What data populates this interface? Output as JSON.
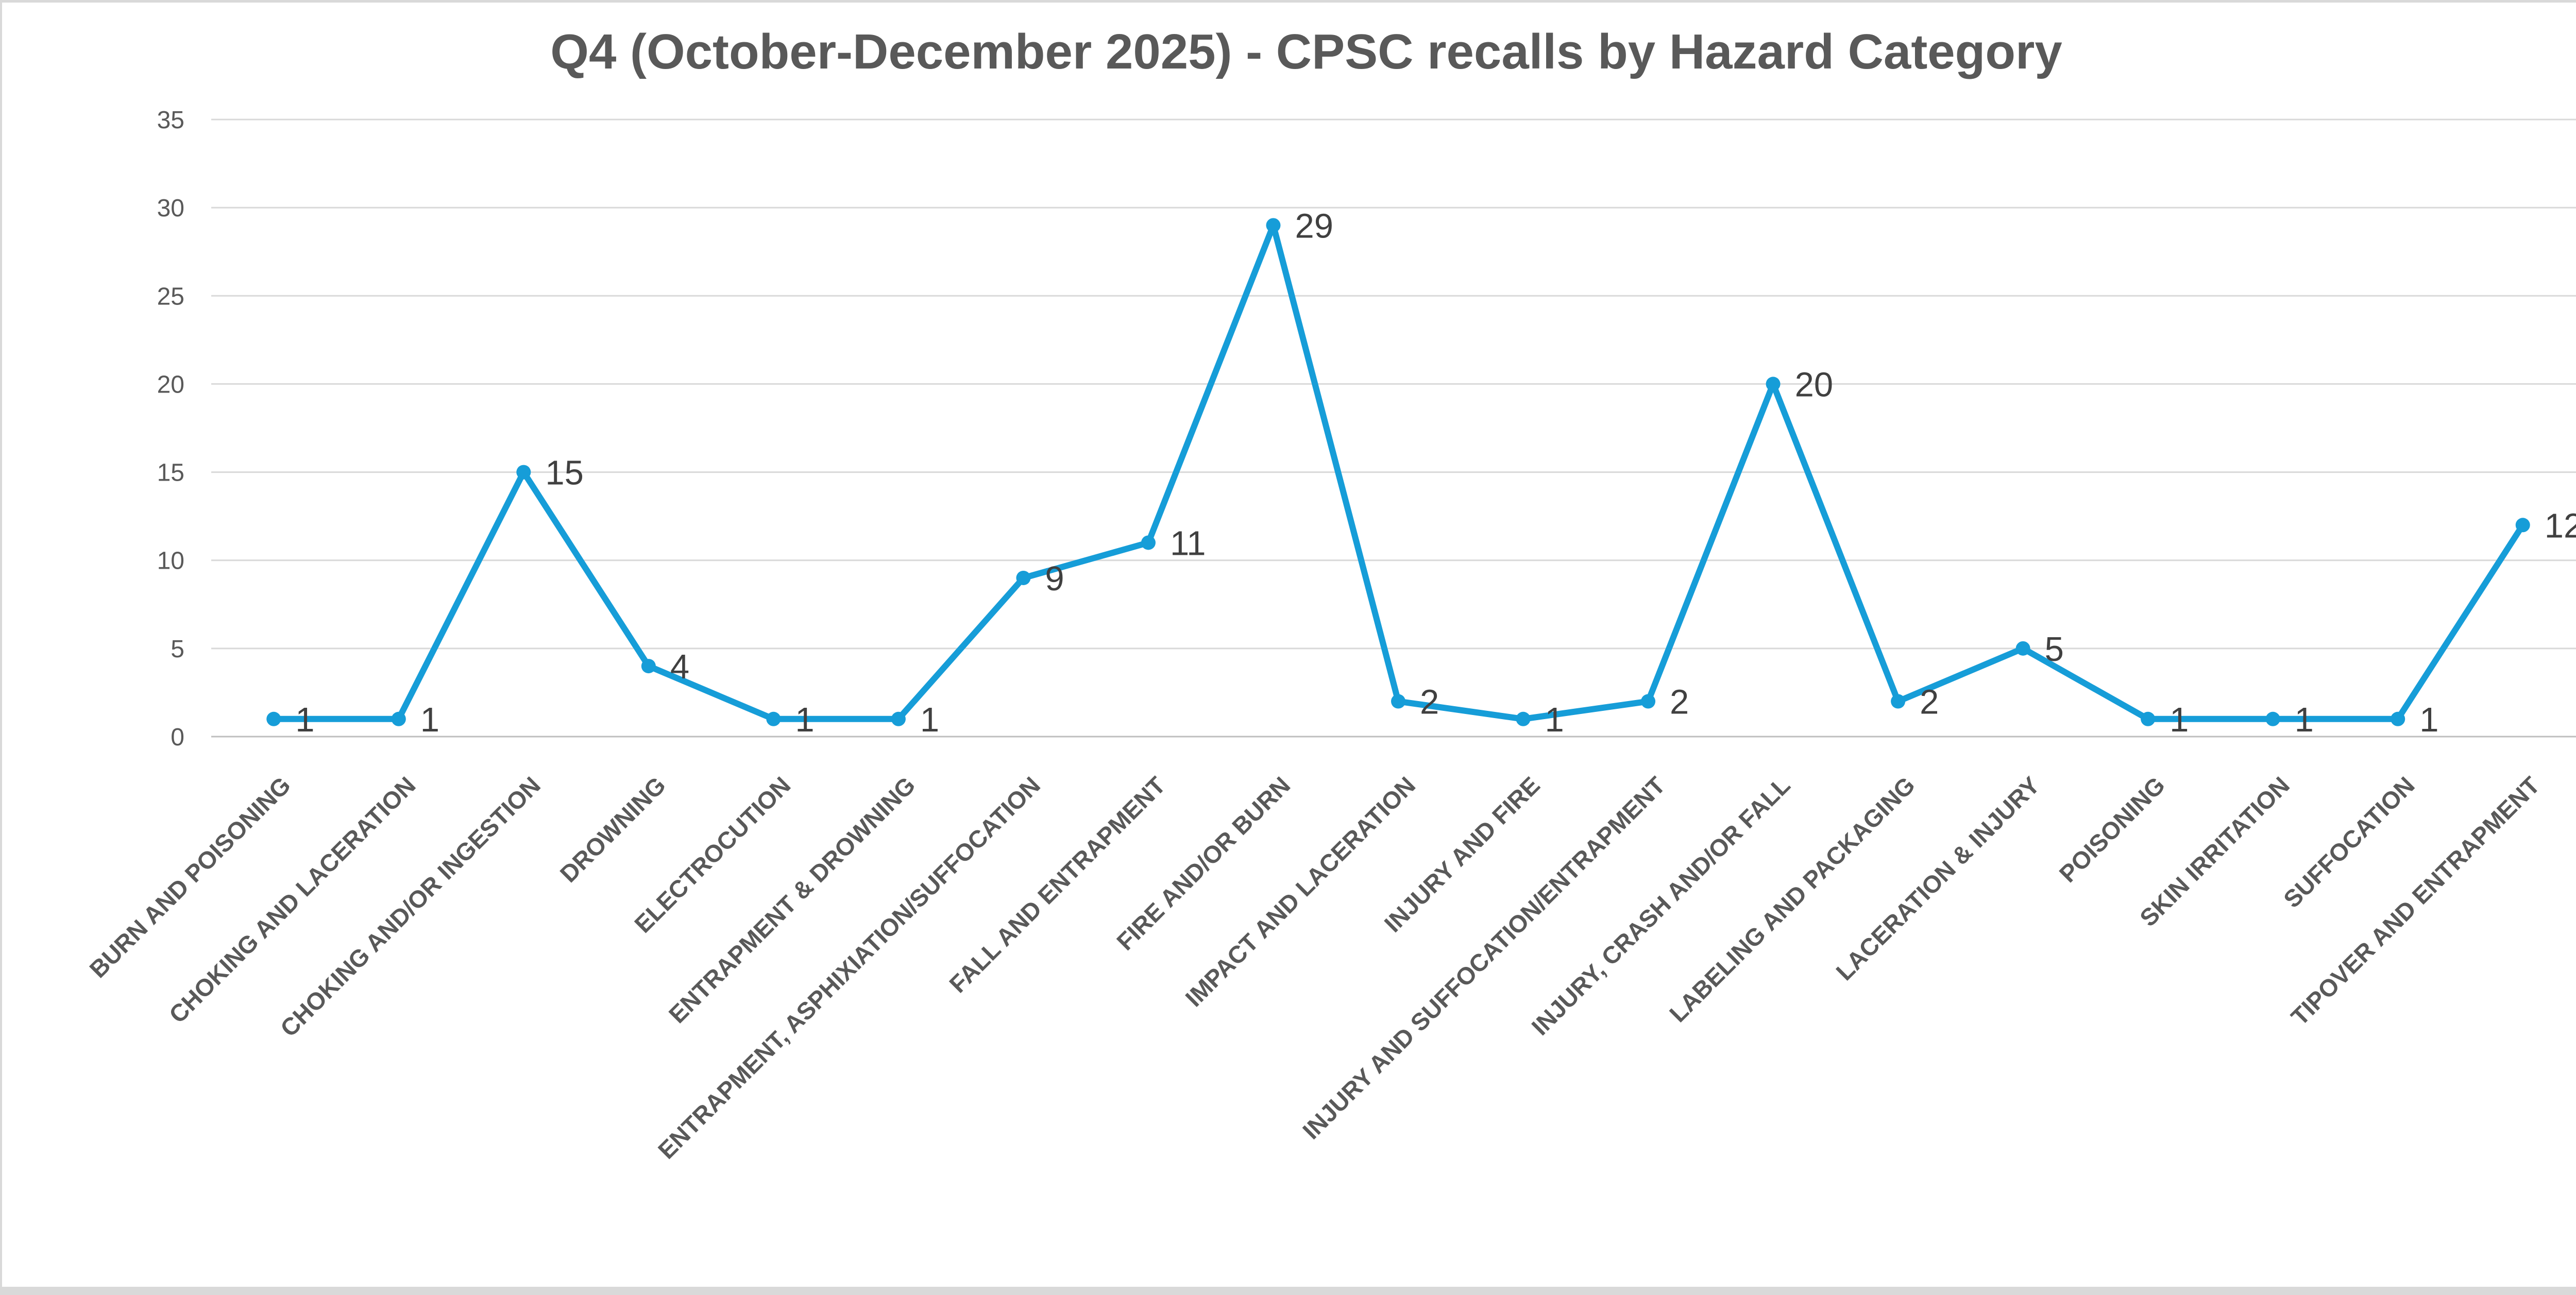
{
  "chart_data": {
    "type": "line",
    "title": "Q4 (October-December 2025) - CPSC recalls by Hazard Category",
    "categories": [
      "BURN AND POISONING",
      "CHOKING AND LACERATION",
      "CHOKING AND/OR INGESTION",
      "DROWNING",
      "ELECTROCUTION",
      "ENTRAPMENT & DROWNING",
      "ENTRAPMENT, ASPHIXIATION/SUFFOCATION",
      "FALL AND ENTRAPMENT",
      "FIRE AND/OR BURN",
      "IMPACT AND LACERATION",
      "INJURY AND FIRE",
      "INJURY AND SUFFOCATION/ENTRAPMENT",
      "INJURY, CRASH AND/OR FALL",
      "LABELING AND PACKAGING",
      "LACERATION & INJURY",
      "POISONING",
      "SKIN IRRITATION",
      "SUFFOCATION",
      "TIPOVER AND ENTRAPMENT"
    ],
    "values": [
      1,
      1,
      15,
      4,
      1,
      1,
      9,
      11,
      29,
      2,
      1,
      2,
      20,
      2,
      5,
      1,
      1,
      1,
      12
    ],
    "xlabel": "",
    "ylabel": "",
    "ylim": [
      0,
      35
    ],
    "ytick_step": 5,
    "yticks": [
      "0",
      "5",
      "10",
      "15",
      "20",
      "25",
      "30",
      "35"
    ],
    "grid": true,
    "legend_position": "none",
    "data_label_position": "right",
    "colors": {
      "series": "#169dd8",
      "gridline": "#d9d9d9",
      "axis_line": "#bfbfbf",
      "title_text": "#595959",
      "tick_text": "#595959",
      "category_text": "#595959",
      "data_label_text": "#404040",
      "panel_background": "#ffffff",
      "outer_background": "#d9d9d9"
    }
  }
}
